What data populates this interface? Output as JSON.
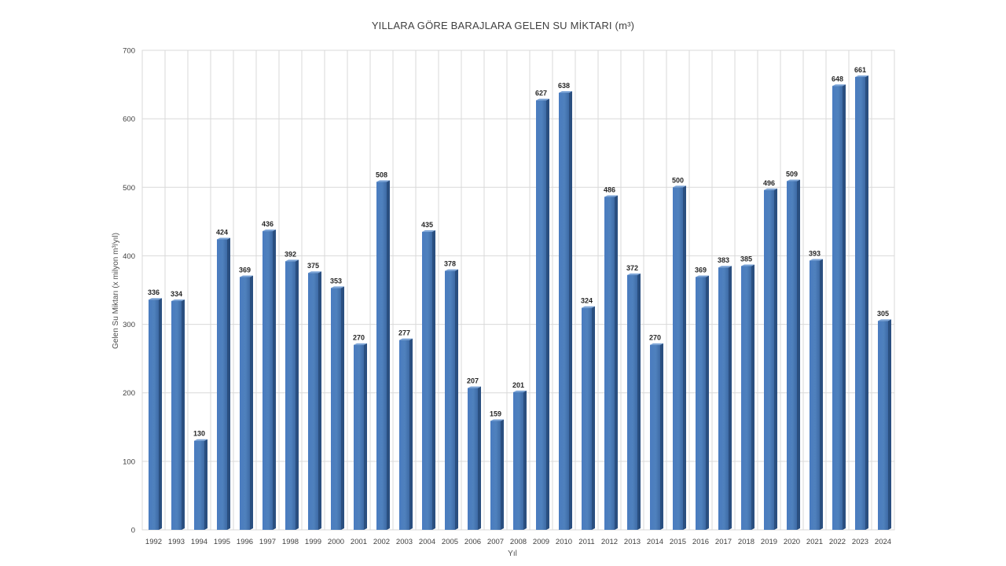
{
  "chart_data": {
    "type": "bar",
    "title": "YILLARA GÖRE BARAJLARA GELEN SU MİKTARI (m³)",
    "xlabel": "Yıl",
    "ylabel": "Gelen Su Miktarı (x milyon m³/yıl)",
    "ylim": [
      0,
      700
    ],
    "yticks": [
      0,
      100,
      200,
      300,
      400,
      500,
      600,
      700
    ],
    "grid": true,
    "legend": "none",
    "bar_color": "#4f81bd",
    "categories": [
      "1992",
      "1993",
      "1994",
      "1995",
      "1996",
      "1997",
      "1998",
      "1999",
      "2000",
      "2001",
      "2002",
      "2003",
      "2004",
      "2005",
      "2006",
      "2007",
      "2008",
      "2009",
      "2010",
      "2011",
      "2012",
      "2013",
      "2014",
      "2015",
      "2016",
      "2017",
      "2018",
      "2019",
      "2020",
      "2021",
      "2022",
      "2023",
      "2024"
    ],
    "values": [
      336,
      334,
      130,
      424,
      369,
      436,
      392,
      375,
      353,
      270,
      508,
      277,
      435,
      378,
      207,
      159,
      201,
      627,
      638,
      324,
      486,
      372,
      270,
      500,
      369,
      383,
      385,
      496,
      509,
      393,
      648,
      661,
      305
    ]
  }
}
